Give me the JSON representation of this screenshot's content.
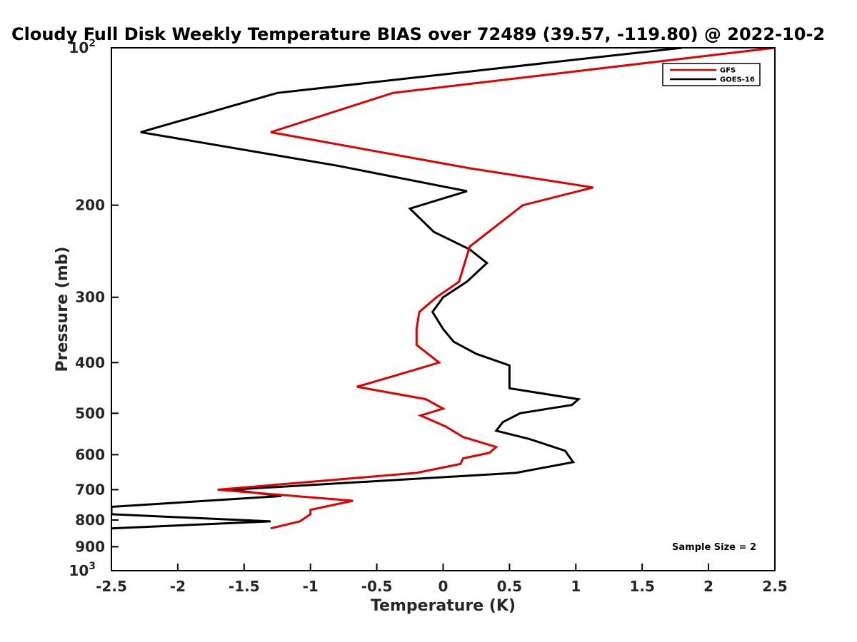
{
  "chart_data": {
    "type": "line",
    "title": "Cloudy Full Disk Weekly Temperature BIAS over 72489 (39.57, -119.80) @ 2022-10-2",
    "xlabel": "Temperature (K)",
    "ylabel": "Pressure (mb)",
    "xlim": [
      -2.5,
      2.5
    ],
    "ylim": [
      100,
      1000
    ],
    "y_scale": "log",
    "y_reversed": true,
    "x_ticks": [
      -2.5,
      -2,
      -1.5,
      -1,
      -0.5,
      0,
      0.5,
      1,
      1.5,
      2,
      2.5
    ],
    "x_tick_labels": [
      "-2.5",
      "-2",
      "-1.5",
      "-1",
      "-0.5",
      "0",
      "0.5",
      "1",
      "1.5",
      "2",
      "2.5"
    ],
    "y_ticks": [
      {
        "value": 100,
        "label": "10",
        "exp": "2"
      },
      {
        "value": 200,
        "label": "200",
        "exp": ""
      },
      {
        "value": 300,
        "label": "300",
        "exp": ""
      },
      {
        "value": 400,
        "label": "400",
        "exp": ""
      },
      {
        "value": 500,
        "label": "500",
        "exp": ""
      },
      {
        "value": 600,
        "label": "600",
        "exp": ""
      },
      {
        "value": 700,
        "label": "700",
        "exp": ""
      },
      {
        "value": 800,
        "label": "800",
        "exp": ""
      },
      {
        "value": 900,
        "label": "900",
        "exp": ""
      },
      {
        "value": 1000,
        "label": "10",
        "exp": "3"
      }
    ],
    "grid": false,
    "legend_position": "top-right",
    "annotation": "Sample Size = 2",
    "series": [
      {
        "name": "GFS",
        "color": "#e00000",
        "points": [
          [
            2.5,
            100
          ],
          [
            -0.38,
            122
          ],
          [
            -1.3,
            145
          ],
          [
            0.2,
            170
          ],
          [
            1.13,
            185
          ],
          [
            0.6,
            200
          ],
          [
            0.2,
            240
          ],
          [
            0.12,
            280
          ],
          [
            -0.05,
            300
          ],
          [
            -0.18,
            320
          ],
          [
            -0.2,
            345
          ],
          [
            -0.2,
            370
          ],
          [
            -0.03,
            400
          ],
          [
            -0.38,
            425
          ],
          [
            -0.65,
            445
          ],
          [
            -0.13,
            470
          ],
          [
            0.0,
            490
          ],
          [
            -0.17,
            505
          ],
          [
            0.02,
            530
          ],
          [
            0.15,
            555
          ],
          [
            0.4,
            580
          ],
          [
            0.35,
            595
          ],
          [
            0.15,
            610
          ],
          [
            0.13,
            625
          ],
          [
            -0.2,
            650
          ],
          [
            -1.7,
            700
          ],
          [
            -0.68,
            735
          ],
          [
            -1.0,
            765
          ],
          [
            -1.0,
            780
          ],
          [
            -1.08,
            805
          ],
          [
            -1.3,
            830
          ]
        ]
      },
      {
        "name": "GOES-16",
        "color": "#000000",
        "points": [
          [
            1.8,
            100
          ],
          [
            -1.25,
            122
          ],
          [
            -2.28,
            145
          ],
          [
            -0.8,
            168
          ],
          [
            0.18,
            188
          ],
          [
            -0.25,
            203
          ],
          [
            -0.07,
            225
          ],
          [
            0.2,
            243
          ],
          [
            0.33,
            258
          ],
          [
            0.18,
            280
          ],
          [
            0.0,
            300
          ],
          [
            -0.08,
            320
          ],
          [
            0.0,
            345
          ],
          [
            0.08,
            365
          ],
          [
            0.25,
            385
          ],
          [
            0.5,
            405
          ],
          [
            0.5,
            430
          ],
          [
            0.5,
            448
          ],
          [
            1.02,
            470
          ],
          [
            0.97,
            482
          ],
          [
            0.58,
            500
          ],
          [
            0.45,
            520
          ],
          [
            0.4,
            540
          ],
          [
            0.65,
            560
          ],
          [
            0.92,
            590
          ],
          [
            0.95,
            605
          ],
          [
            0.98,
            620
          ],
          [
            0.55,
            650
          ],
          [
            -1.6,
            700
          ],
          [
            -1.22,
            720
          ],
          [
            -2.5,
            755
          ],
          [
            -2.5,
            780
          ],
          [
            -1.3,
            805
          ],
          [
            -2.5,
            830
          ]
        ]
      }
    ]
  }
}
